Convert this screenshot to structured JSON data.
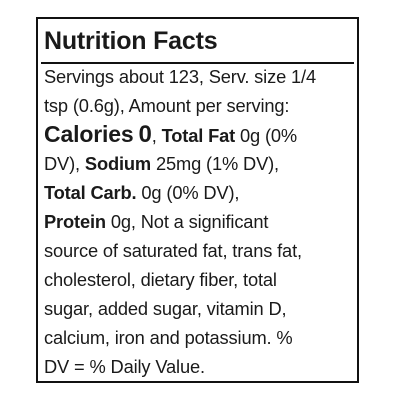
{
  "title": "Nutrition Facts",
  "lines": {
    "l1": "Servings about 123, Serv. size 1/4",
    "l2": "tsp (0.6g), Amount per serving:",
    "l3": {
      "calories_label": "Calories",
      "calories_value": "0",
      "sep": ", ",
      "total_fat_label": "Total Fat",
      "total_fat_value": " 0g (0%"
    },
    "l4": {
      "pre": "DV), ",
      "sodium_label": "Sodium",
      "sodium_value": " 25mg (1% DV),"
    },
    "l5": {
      "total_carb_label": "Total Carb.",
      "total_carb_value": " 0g (0% DV),"
    },
    "l6": {
      "protein_label": "Protein",
      "protein_value": " 0g, Not a significant"
    },
    "l7": "source of saturated fat, trans fat,",
    "l8": "cholesterol, dietary fiber, total",
    "l9": "sugar, added sugar, vitamin D,",
    "l10": "calcium, iron and potassium. %",
    "l11": "DV = % Daily Value."
  }
}
